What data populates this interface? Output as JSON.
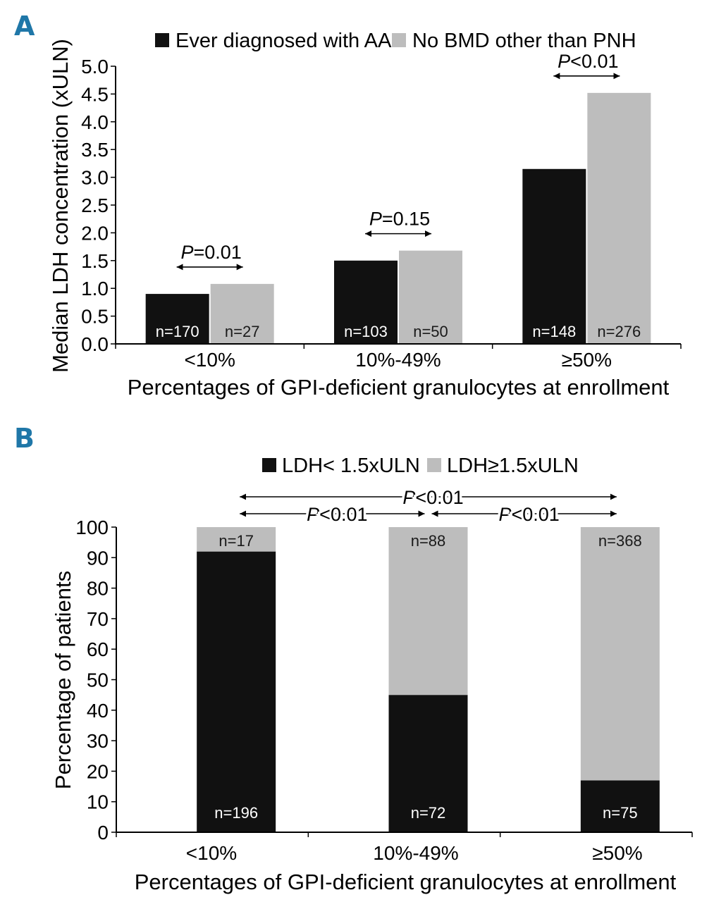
{
  "colors": {
    "series_dark": "#111111",
    "series_light": "#bdbdbd",
    "panel_letter": "#1f77a8",
    "axis": "#000000"
  },
  "chart_data": [
    {
      "panel": "A",
      "type": "bar",
      "title": "",
      "xlabel": "Percentages of GPI-deficient granulocytes at enrollment",
      "ylabel": "Median LDH concentration (xULN)",
      "categories": [
        "<10%",
        "10%-49%",
        "≥50%"
      ],
      "ylim": [
        0,
        5.0
      ],
      "yticks": [
        "0.0",
        "0.5",
        "1.0",
        "1.5",
        "2.0",
        "2.5",
        "3.0",
        "3.5",
        "4.0",
        "4.5",
        "5.0"
      ],
      "grid": false,
      "legend_position": "top",
      "series": [
        {
          "name": "Ever diagnosed with AA",
          "values": [
            0.9,
            1.5,
            3.15
          ],
          "n_labels": [
            "n=170",
            "n=103",
            "n=148"
          ]
        },
        {
          "name": "No BMD other than PNH",
          "values": [
            1.08,
            1.68,
            4.52
          ],
          "n_labels": [
            "n=27",
            "n=50",
            "n=276"
          ]
        }
      ],
      "annotations": [
        {
          "category": "<10%",
          "p_italic": "P",
          "p_rest": "=0.01"
        },
        {
          "category": "10%-49%",
          "p_italic": "P",
          "p_rest": "=0.15"
        },
        {
          "category": "≥50%",
          "p_italic": "P",
          "p_rest": "<0.01"
        }
      ]
    },
    {
      "panel": "B",
      "type": "bar",
      "stacked": true,
      "title": "",
      "xlabel": "Percentages of GPI-deficient granulocytes at enrollment",
      "ylabel": "Percentage of patients",
      "categories": [
        "<10%",
        "10%-49%",
        "≥50%"
      ],
      "ylim": [
        0,
        100
      ],
      "yticks": [
        "0",
        "10",
        "20",
        "30",
        "40",
        "50",
        "60",
        "70",
        "80",
        "90",
        "100"
      ],
      "grid": false,
      "legend_position": "top",
      "series": [
        {
          "name": "LDH< 1.5xULN",
          "values": [
            92,
            45,
            17
          ],
          "n_labels": [
            "n=196",
            "n=72",
            "n=75"
          ]
        },
        {
          "name": "LDH≥1.5xULN",
          "values": [
            8,
            55,
            83
          ],
          "n_labels": [
            "n=17",
            "n=88",
            "n=368"
          ]
        }
      ],
      "annotations": [
        {
          "from": "<10%",
          "to": "≥50%",
          "p_italic": "P",
          "p_rest": "<0.01"
        },
        {
          "from": "<10%",
          "to": "10%-49%",
          "p_italic": "P",
          "p_rest": "<0.01"
        },
        {
          "from": "10%-49%",
          "to": "≥50%",
          "p_italic": "P",
          "p_rest": "<0.01"
        }
      ]
    }
  ]
}
